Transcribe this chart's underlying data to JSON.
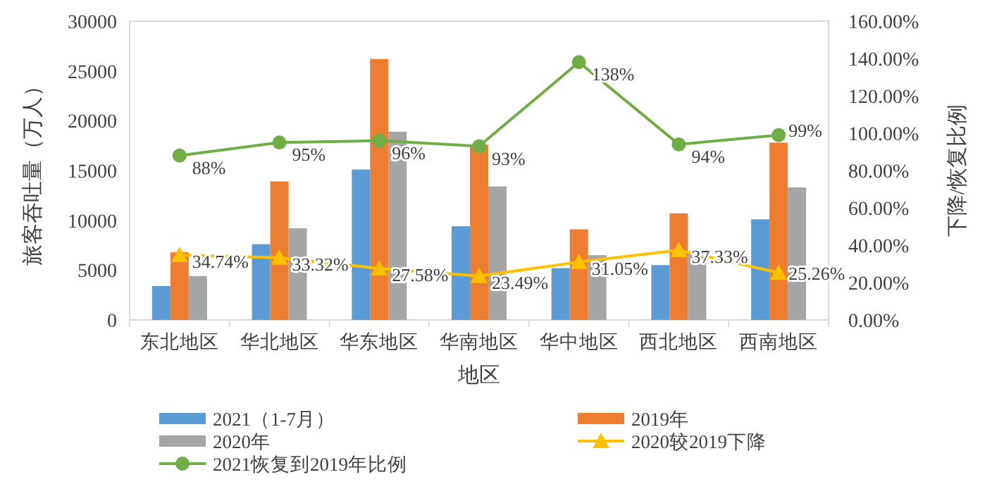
{
  "chart_data": {
    "type": "bar",
    "xlabel": "地区",
    "ylabel": "旅客吞吐量（万人）",
    "y2label": "下降/恢复比例",
    "categories": [
      "东北地区",
      "华北地区",
      "华东地区",
      "华南地区",
      "华中地区",
      "西北地区",
      "西南地区"
    ],
    "series": [
      {
        "name": "2021（1-7月）",
        "color": "#5b9bd5",
        "values": [
          3400,
          7600,
          15100,
          9400,
          5200,
          5500,
          10100
        ]
      },
      {
        "name": "2019年",
        "color": "#ed7d31",
        "values": [
          6800,
          13900,
          26200,
          17600,
          9100,
          10700,
          17800
        ]
      },
      {
        "name": "2020年",
        "color": "#a5a5a5",
        "values": [
          4400,
          9200,
          18900,
          13400,
          6500,
          6700,
          13300
        ]
      },
      {
        "name": "2020较2019下降",
        "type": "line",
        "axis": "y2",
        "marker": "triangle",
        "color": "#ffc000",
        "values": [
          34.74,
          33.32,
          27.58,
          23.49,
          31.05,
          37.33,
          25.26
        ],
        "value_labels": [
          "34.74%",
          "33.32%",
          "27.58%",
          "23.49%",
          "31.05%",
          "37.33%",
          "25.26%"
        ]
      },
      {
        "name": "2021恢复到2019年比例",
        "type": "line",
        "axis": "y2",
        "marker": "circle",
        "color": "#70ad47",
        "values": [
          88,
          95,
          96,
          93,
          138,
          94,
          99
        ],
        "value_labels": [
          "88%",
          "95%",
          "96%",
          "93%",
          "138%",
          "94%",
          "99%"
        ]
      }
    ],
    "ylim": [
      0,
      30000
    ],
    "yticks": [
      0,
      5000,
      10000,
      15000,
      20000,
      25000,
      30000
    ],
    "y2lim": [
      0,
      160
    ],
    "y2ticks": [
      {
        "value": 0,
        "label": "0.00%"
      },
      {
        "value": 20,
        "label": "20.00%"
      },
      {
        "value": 40,
        "label": "40.00%"
      },
      {
        "value": 60,
        "label": "60.00%"
      },
      {
        "value": 80,
        "label": "80.00%"
      },
      {
        "value": 100,
        "label": "100.00%"
      },
      {
        "value": 120,
        "label": "120.00%"
      },
      {
        "value": 140,
        "label": "140.00%"
      },
      {
        "value": 160,
        "label": "160.00%"
      }
    ],
    "legend": "bottom"
  }
}
